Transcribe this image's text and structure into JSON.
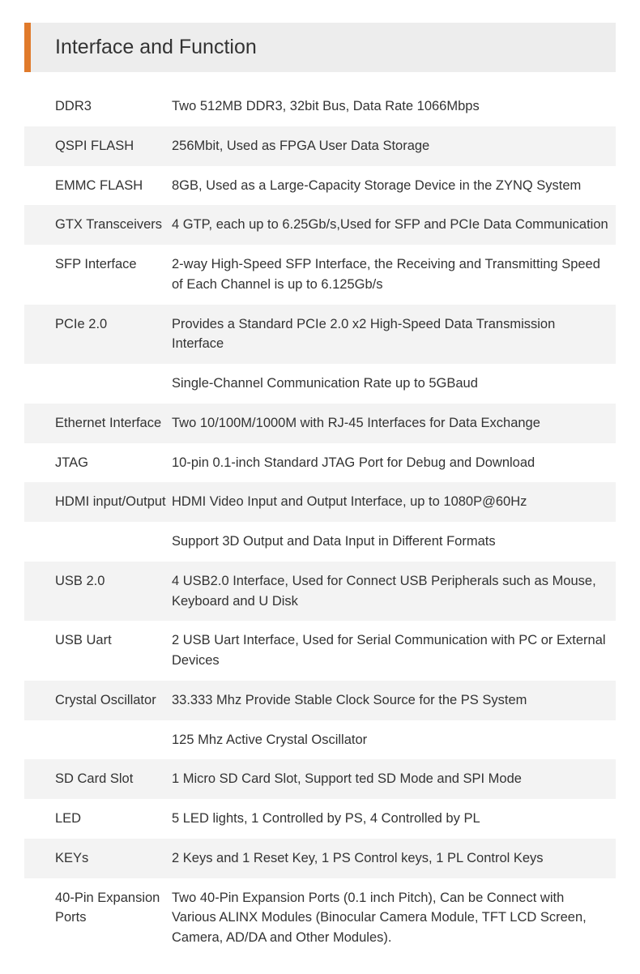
{
  "title": "Interface and Function",
  "colors": {
    "accent": "#e07a2b",
    "title_bg": "#ededed",
    "row_shaded_bg": "#f3f3f3",
    "text": "#333333",
    "background": "#ffffff"
  },
  "rows": [
    {
      "label": "DDR3",
      "value": "Two 512MB DDR3, 32bit Bus, Data Rate 1066Mbps",
      "shaded": false
    },
    {
      "label": "QSPI FLASH",
      "value": "256Mbit, Used as FPGA User Data Storage",
      "shaded": true
    },
    {
      "label": "EMMC FLASH",
      "value": "8GB, Used as a Large-Capacity Storage Device in the ZYNQ System",
      "shaded": false
    },
    {
      "label": "GTX Transceivers",
      "value": "4 GTP, each up to 6.25Gb/s,Used for SFP and PCIe Data Communication",
      "shaded": true
    },
    {
      "label": "SFP Interface",
      "value": "2-way High-Speed SFP Interface, the Receiving and Transmitting Speed of Each Channel is up to 6.125Gb/s",
      "shaded": false
    },
    {
      "label": "PCIe 2.0",
      "value": "Provides a Standard PCIe 2.0 x2 High-Speed Data Transmission Interface",
      "shaded": true
    },
    {
      "label": "",
      "value": "Single-Channel Communication Rate up to 5GBaud",
      "shaded": false
    },
    {
      "label": "Ethernet Interface",
      "value": "Two 10/100M/1000M with RJ-45 Interfaces for Data Exchange",
      "shaded": true
    },
    {
      "label": "JTAG",
      "value": "10-pin 0.1-inch Standard JTAG Port for Debug and Download",
      "shaded": false
    },
    {
      "label": "HDMI input/Output",
      "value": "HDMI Video Input and Output Interface, up to 1080P@60Hz",
      "shaded": true
    },
    {
      "label": "",
      "value": "Support 3D Output and Data Input in Different Formats",
      "shaded": false
    },
    {
      "label": "USB 2.0",
      "value": "4 USB2.0 Interface, Used for Connect USB Peripherals such as Mouse, Keyboard and U Disk",
      "shaded": true
    },
    {
      "label": "USB Uart",
      "value": "2 USB Uart Interface, Used for Serial Communication with PC or External Devices",
      "shaded": false
    },
    {
      "label": "Crystal Oscillator",
      "value": "33.333 Mhz  Provide Stable Clock Source for the PS System",
      "shaded": true
    },
    {
      "label": "",
      "value": "125 Mhz Active Crystal Oscillator",
      "shaded": false
    },
    {
      "label": "SD Card Slot",
      "value": "1 Micro SD Card Slot,  Support ted SD Mode and SPI Mode",
      "shaded": true
    },
    {
      "label": "LED",
      "value": "5 LED lights, 1 Controlled by PS, 4 Controlled by PL",
      "shaded": false
    },
    {
      "label": "KEYs",
      "value": "2 Keys and 1 Reset Key, 1 PS Control keys, 1 PL Control Keys",
      "shaded": true
    },
    {
      "label": "40-Pin Expansion Ports",
      "value": "Two 40-Pin Expansion Ports (0.1 inch Pitch), Can be Connect with Various ALINX Modules (Binocular Camera Module, TFT LCD Screen, Camera, AD/DA and Other Modules).",
      "shaded": false
    }
  ]
}
